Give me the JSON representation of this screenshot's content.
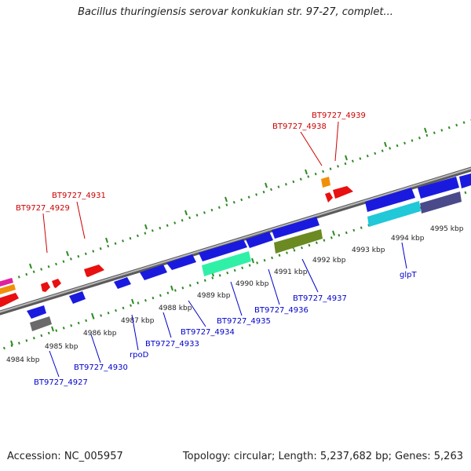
{
  "title": "Bacillus thuringiensis serovar konkukian str. 97-27, complet...",
  "footer": {
    "accession": "Accession: NC_005957",
    "summary": "Topology: circular; Length: 5,237,682 bp; Genes: 5,263"
  },
  "colors": {
    "backbone": "#8a8a8a",
    "tick_green": "#2e8b22",
    "label_red": "#cc0000",
    "label_blue": "#0000cc",
    "gene_blue": "#1a1adf",
    "gene_red": "#e81010",
    "gene_orange": "#f0900a",
    "gene_magenta": "#e020a0",
    "gene_gray": "#6a6a6a",
    "gene_cyan": "#20c8d8",
    "gene_mint": "#30f0a8",
    "gene_olive": "#6b8a22",
    "gene_slate": "#4a4a8a"
  },
  "scale": {
    "kbp_labels": [
      "4984 kbp",
      "4985 kbp",
      "4986 kbp",
      "4987 kbp",
      "4988 kbp",
      "4989 kbp",
      "4990 kbp",
      "4991 kbp",
      "4992 kbp",
      "4993 kbp",
      "4994 kbp",
      "4995 kbp"
    ]
  },
  "genes_top": [
    {
      "label": "BT9727_4929",
      "color": "#cc0000"
    },
    {
      "label": "BT9727_4931",
      "color": "#cc0000"
    },
    {
      "label": "BT9727_4938",
      "color": "#cc0000"
    },
    {
      "label": "BT9727_4939",
      "color": "#cc0000"
    }
  ],
  "genes_bottom": [
    {
      "label": "BT9727_4927",
      "color": "#0000cc"
    },
    {
      "label": "BT9727_4930",
      "color": "#0000cc"
    },
    {
      "label": "rpoD",
      "color": "#0000cc"
    },
    {
      "label": "BT9727_4933",
      "color": "#0000cc"
    },
    {
      "label": "BT9727_4934",
      "color": "#0000cc"
    },
    {
      "label": "BT9727_4935",
      "color": "#0000cc"
    },
    {
      "label": "BT9727_4936",
      "color": "#0000cc"
    },
    {
      "label": "BT9727_4937",
      "color": "#0000cc"
    },
    {
      "label": "glpT",
      "color": "#0000cc"
    }
  ]
}
